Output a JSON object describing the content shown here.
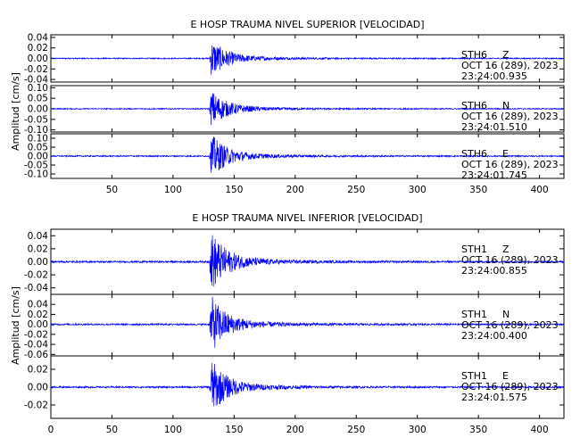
{
  "colors": {
    "trace": "#0000ff",
    "frame": "#000000",
    "background": "#ffffff"
  },
  "chart_data": [
    {
      "type": "line",
      "title": "E HOSP TRAUMA NIVEL SUPERIOR [VELOCIDAD]",
      "ylabel": "Amplitud [cm/s]",
      "xlim": [
        0,
        420
      ],
      "x_ticks": [
        "50",
        "100",
        "150",
        "200",
        "250",
        "300",
        "350",
        "400"
      ],
      "arrival_x": 130,
      "panels": [
        {
          "station": "STH6",
          "component": "Z",
          "date": "OCT 16 (289), 2023",
          "time": "23:24:00.935",
          "ylim": [
            -0.045,
            0.045
          ],
          "y_ticks": [
            "0.04",
            "0.02",
            "0.00",
            "-0.02",
            "-0.04"
          ],
          "peak_amplitude": 0.035
        },
        {
          "station": "STH6",
          "component": "N",
          "date": "OCT 16 (289), 2023",
          "time": "23:24:01.510",
          "ylim": [
            -0.11,
            0.11
          ],
          "y_ticks": [
            "0.10",
            "0.05",
            "0.00",
            "-0.05",
            "-0.10"
          ],
          "peak_amplitude": 0.085
        },
        {
          "station": "STH6",
          "component": "E",
          "date": "OCT 16 (289), 2023",
          "time": "23:24:01.745",
          "ylim": [
            -0.125,
            0.125
          ],
          "y_ticks": [
            "0.10",
            "0.05",
            "0.00",
            "-0.05",
            "-0.10"
          ],
          "peak_amplitude": 0.12
        }
      ]
    },
    {
      "type": "line",
      "title": "E HOSP TRAUMA NIVEL INFERIOR [VELOCIDAD]",
      "ylabel": "Amplitud [cm/s]",
      "xlim": [
        0,
        420
      ],
      "x_ticks": [
        "0",
        "50",
        "100",
        "150",
        "200",
        "250",
        "300",
        "350",
        "400"
      ],
      "arrival_x": 130,
      "panels": [
        {
          "station": "STH1",
          "component": "Z",
          "date": "OCT 16 (289), 2023",
          "time": "23:24:00.855",
          "ylim": [
            -0.05,
            0.05
          ],
          "y_ticks": [
            "0.04",
            "0.02",
            "0.00",
            "-0.02",
            "-0.04"
          ],
          "peak_amplitude": 0.045
        },
        {
          "station": "STH1",
          "component": "N",
          "date": "OCT 16 (289), 2023",
          "time": "23:24:00.400",
          "ylim": [
            -0.063,
            0.06
          ],
          "y_ticks": [
            "0.04",
            "0.02",
            "0.00",
            "-0.02",
            "-0.04",
            "-0.06"
          ],
          "peak_amplitude": 0.055
        },
        {
          "station": "STH1",
          "component": "E",
          "date": "OCT 16 (289), 2023",
          "time": "23:24:01.575",
          "ylim": [
            -0.035,
            0.035
          ],
          "y_ticks": [
            "0.02",
            "0.00",
            "-0.02"
          ],
          "peak_amplitude": 0.03
        }
      ]
    }
  ]
}
